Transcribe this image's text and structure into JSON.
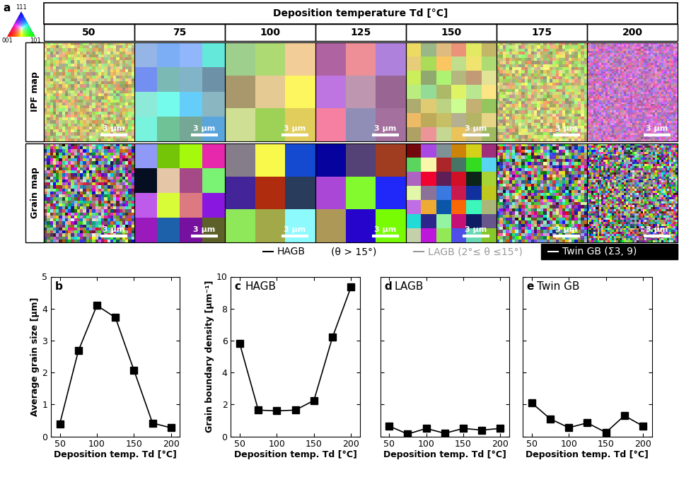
{
  "panel_a": {
    "label": "a",
    "header": "Deposition temperature Td [°C]",
    "columns": [
      50,
      75,
      100,
      125,
      150,
      175,
      200
    ],
    "rows": [
      "IPF map",
      "Grain map"
    ],
    "scale_bar": "3 µm",
    "ipf_key": {
      "top": "111",
      "left": "001",
      "right": "101"
    },
    "legend": [
      {
        "name": "HAGB",
        "color": "#000000"
      },
      {
        "name": "(θ > 15°)",
        "color": "#000000"
      },
      {
        "name": "LAGB (2°≤ θ ≤15°)",
        "color": "#999999"
      },
      {
        "name": "Twin GB (Σ3, 9)",
        "color": "#ffffff"
      }
    ]
  },
  "chart_data": [
    {
      "type": "line",
      "panel_label": "b",
      "title": "",
      "x_label": "Deposition temp. Td [°C]",
      "y_label": "Average grain size [µm]",
      "x": [
        50,
        75,
        100,
        125,
        150,
        175,
        200
      ],
      "values": [
        0.4,
        2.68,
        4.1,
        3.72,
        2.07,
        0.42,
        0.27
      ],
      "color": "#000000",
      "marker": "square",
      "line_style": "solid",
      "xlim": [
        38,
        212
      ],
      "xticks": [
        50,
        100,
        150,
        200
      ],
      "ylim": [
        0,
        5
      ],
      "yticks": [
        0,
        1,
        2,
        3,
        4,
        5
      ],
      "tick_labels": true
    },
    {
      "type": "line",
      "panel_label": "c",
      "title": "HAGB",
      "x_label": "Deposition temp. Td [°C]",
      "y_label": "Grain boundary density [µm⁻¹]",
      "x": [
        50,
        75,
        100,
        125,
        150,
        175,
        200
      ],
      "values": [
        5.8,
        1.65,
        1.6,
        1.65,
        2.25,
        6.2,
        9.35
      ],
      "color": "#000000",
      "marker": "square",
      "line_style": "solid",
      "xlim": [
        38,
        212
      ],
      "xticks": [
        50,
        100,
        150,
        200
      ],
      "ylim": [
        0,
        10
      ],
      "yticks": [
        0,
        2,
        4,
        6,
        8,
        10
      ],
      "tick_labels": true
    },
    {
      "type": "line",
      "panel_label": "d",
      "title": "LAGB",
      "x_label": "Deposition temp. Td [°C]",
      "x": [
        50,
        75,
        100,
        125,
        150,
        175,
        200
      ],
      "values": [
        0.65,
        0.15,
        0.5,
        0.2,
        0.5,
        0.4,
        0.5
      ],
      "color": "#000000",
      "marker": "square",
      "line_style": "solid",
      "xlim": [
        38,
        212
      ],
      "xticks": [
        50,
        100,
        150,
        200
      ],
      "ylim": [
        0,
        10
      ],
      "yticks": [
        0,
        2,
        4,
        6,
        8,
        10
      ],
      "tick_labels": "x"
    },
    {
      "type": "line",
      "panel_label": "e",
      "title": "Twin GB",
      "x_label": "Deposition temp. Td [°C]",
      "x": [
        50,
        75,
        100,
        125,
        150,
        175,
        200
      ],
      "values": [
        2.1,
        1.1,
        0.55,
        0.85,
        0.25,
        1.3,
        0.65
      ],
      "color": "#000000",
      "marker": "square",
      "line_style": "solid",
      "xlim": [
        38,
        212
      ],
      "xticks": [
        50,
        100,
        150,
        200
      ],
      "ylim": [
        0,
        10
      ],
      "yticks": [
        0,
        2,
        4,
        6,
        8,
        10
      ],
      "tick_labels": "x"
    }
  ]
}
